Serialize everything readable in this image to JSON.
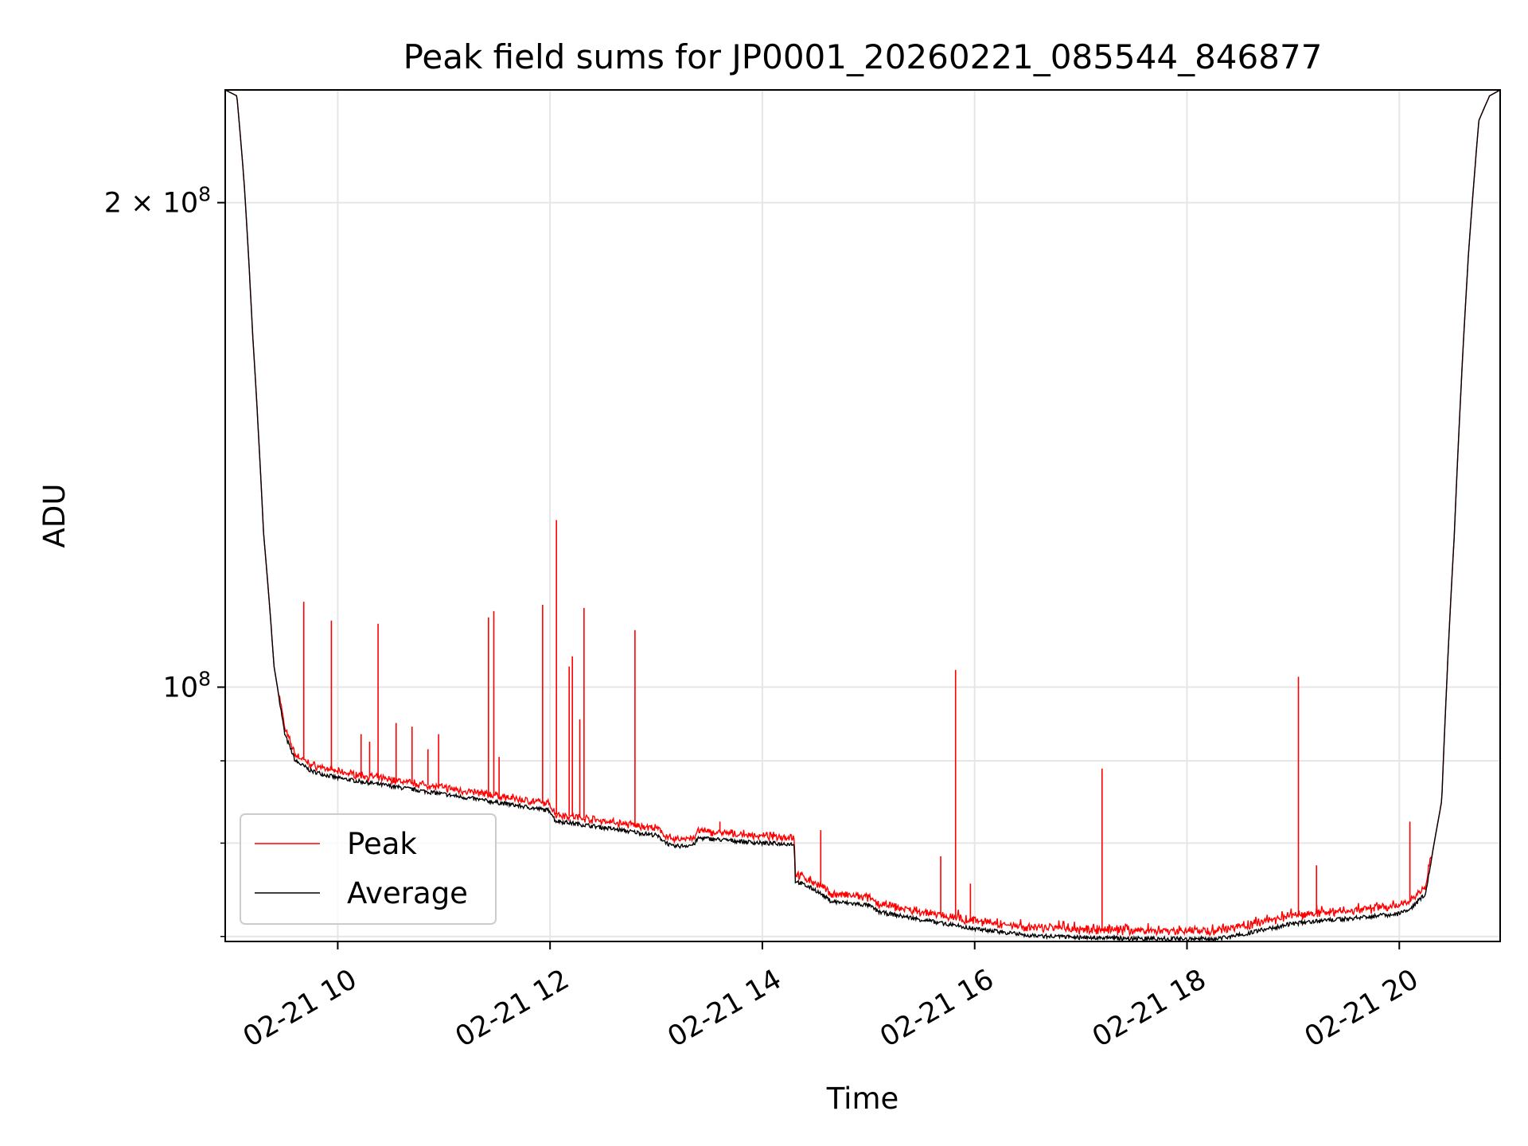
{
  "chart_data": {
    "type": "line",
    "title": "Peak field sums for JP0001_20260221_085544_846877",
    "xlabel": "Time",
    "ylabel": "ADU",
    "yscale": "log",
    "xlim_hours": [
      8.94,
      20.95
    ],
    "ylim": [
      69500000,
      235000000
    ],
    "grid": true,
    "legend_position": "lower-left",
    "x_ticks": [
      {
        "value": 10,
        "label": "02-21 10"
      },
      {
        "value": 12,
        "label": "02-21 12"
      },
      {
        "value": 14,
        "label": "02-21 14"
      },
      {
        "value": 16,
        "label": "02-21 16"
      },
      {
        "value": 18,
        "label": "02-21 18"
      },
      {
        "value": 20,
        "label": "02-21 20"
      }
    ],
    "y_ticks": [
      {
        "value": 100000000,
        "label": "10",
        "exp": "8"
      },
      {
        "value": 200000000,
        "label": "2 × 10",
        "exp": "8"
      }
    ],
    "y_minor_ticks": [
      70000000,
      80000000,
      90000000
    ],
    "colors": {
      "peak": "#ff0000",
      "average": "#000000",
      "grid": "#e6e6e6"
    },
    "series": [
      {
        "name": "Average",
        "color": "#000000",
        "base_points": [
          [
            8.94,
            235000000
          ],
          [
            9.05,
            233000000
          ],
          [
            9.12,
            205000000
          ],
          [
            9.2,
            165000000
          ],
          [
            9.3,
            125000000
          ],
          [
            9.4,
            103000000
          ],
          [
            9.5,
            93500000
          ],
          [
            9.6,
            90000000
          ],
          [
            9.75,
            88700000
          ],
          [
            10.0,
            87800000
          ],
          [
            10.5,
            86800000
          ],
          [
            11.0,
            85800000
          ],
          [
            11.5,
            84800000
          ],
          [
            12.0,
            83800000
          ],
          [
            12.05,
            82600000
          ],
          [
            12.5,
            81800000
          ],
          [
            13.0,
            80900000
          ],
          [
            13.15,
            79600000
          ],
          [
            13.35,
            79800000
          ],
          [
            13.4,
            80600000
          ],
          [
            14.0,
            80000000
          ],
          [
            14.3,
            79900000
          ],
          [
            14.31,
            75800000
          ],
          [
            14.5,
            74800000
          ],
          [
            14.65,
            73600000
          ],
          [
            15.0,
            73200000
          ],
          [
            15.1,
            72500000
          ],
          [
            15.5,
            71700000
          ],
          [
            16.0,
            70800000
          ],
          [
            16.5,
            70100000
          ],
          [
            17.0,
            69900000
          ],
          [
            17.5,
            69800000
          ],
          [
            18.0,
            69750000
          ],
          [
            18.3,
            69800000
          ],
          [
            18.6,
            70400000
          ],
          [
            19.0,
            71300000
          ],
          [
            19.5,
            71800000
          ],
          [
            20.0,
            72300000
          ],
          [
            20.1,
            72700000
          ],
          [
            20.25,
            74500000
          ],
          [
            20.4,
            85000000
          ],
          [
            20.52,
            125000000
          ],
          [
            20.65,
            185000000
          ],
          [
            20.75,
            225000000
          ],
          [
            20.85,
            233000000
          ],
          [
            20.95,
            235000000
          ]
        ]
      },
      {
        "name": "Peak",
        "color": "#ff0000",
        "offset": 800000,
        "spikes": [
          [
            9.68,
            113000000
          ],
          [
            9.94,
            110000000
          ],
          [
            10.22,
            93500000
          ],
          [
            10.3,
            92500000
          ],
          [
            10.38,
            109500000
          ],
          [
            10.55,
            95000000
          ],
          [
            10.7,
            94500000
          ],
          [
            10.85,
            91500000
          ],
          [
            10.95,
            93500000
          ],
          [
            11.42,
            110500000
          ],
          [
            11.47,
            111500000
          ],
          [
            11.52,
            90500000
          ],
          [
            11.93,
            112500000
          ],
          [
            12.06,
            127000000
          ],
          [
            12.18,
            103000000
          ],
          [
            12.21,
            104500000
          ],
          [
            12.28,
            95500000
          ],
          [
            12.32,
            112000000
          ],
          [
            12.8,
            108500000
          ],
          [
            13.6,
            82500000
          ],
          [
            14.55,
            81500000
          ],
          [
            15.68,
            78500000
          ],
          [
            15.82,
            102500000
          ],
          [
            15.96,
            75500000
          ],
          [
            17.2,
            89000000
          ],
          [
            19.05,
            101500000
          ],
          [
            19.22,
            77500000
          ],
          [
            20.1,
            82500000
          ]
        ]
      }
    ]
  },
  "legend": {
    "peak_label": "Peak",
    "average_label": "Average"
  }
}
